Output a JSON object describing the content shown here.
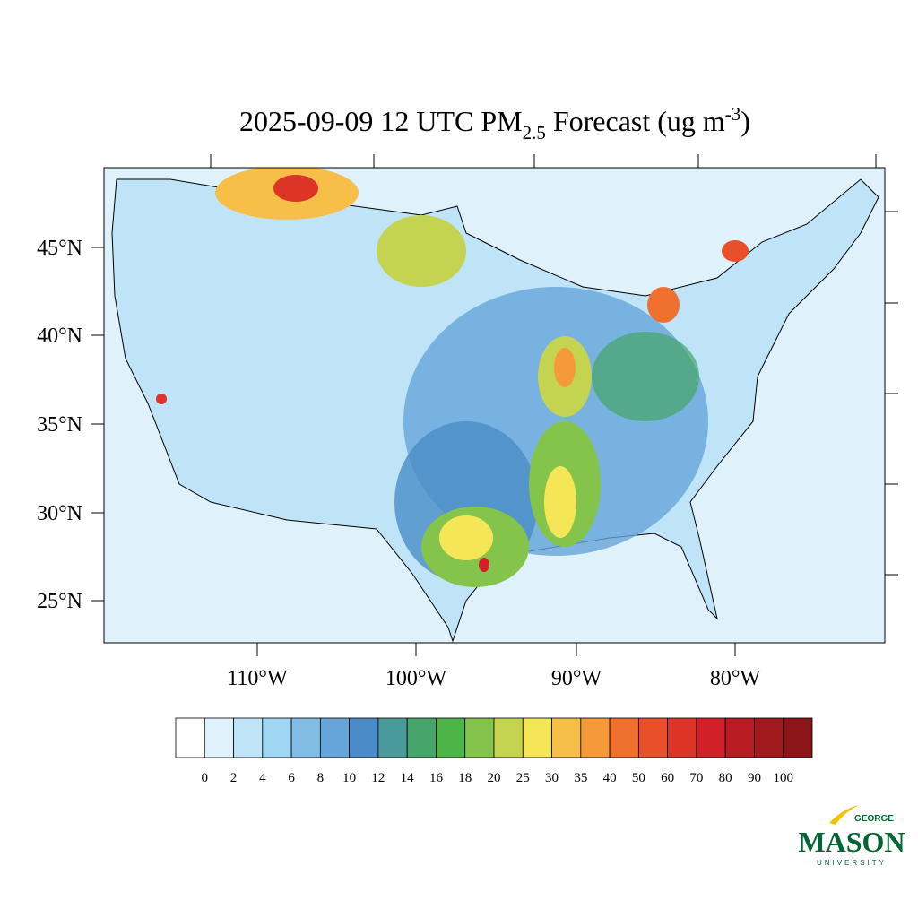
{
  "title": {
    "main": "2025-09-09 12 UTC PM",
    "subscript": "2.5",
    "middle": " Forecast (ug m",
    "superscript": "-3",
    "end": ")"
  },
  "latitude_labels": [
    "45°N",
    "40°N",
    "35°N",
    "30°N",
    "25°N"
  ],
  "longitude_labels": [
    "110°W",
    "100°W",
    "90°W",
    "80°W"
  ],
  "colorbar": {
    "levels": [
      "0",
      "2",
      "4",
      "6",
      "8",
      "10",
      "12",
      "14",
      "16",
      "18",
      "20",
      "25",
      "30",
      "35",
      "40",
      "50",
      "60",
      "70",
      "80",
      "90",
      "100"
    ],
    "colors": [
      "#ffffff",
      "#dff1fb",
      "#bfe4f7",
      "#9fd6f3",
      "#82bde6",
      "#66a5d9",
      "#4a8cc8",
      "#4a9a9a",
      "#45a56a",
      "#4db548",
      "#85c44a",
      "#c4d451",
      "#f5e658",
      "#f7be48",
      "#f59a3a",
      "#f07030",
      "#e8502b",
      "#dc3528",
      "#d12028",
      "#b81c22",
      "#a01a1e",
      "#8b1518"
    ]
  },
  "logo": {
    "top": "GEORGE",
    "main": "MASON",
    "bottom": "UNIVERSITY"
  }
}
